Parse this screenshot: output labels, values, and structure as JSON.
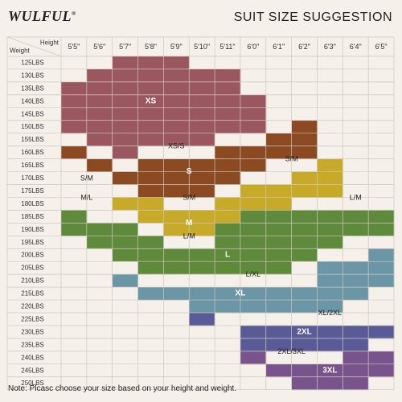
{
  "brand": "WULFUL",
  "brand_mark": "®",
  "title": "SUIT SIZE SUGGESTION",
  "footnote": "Note: Plcasc choose your size based on your height and weight.",
  "colors": {
    "XS": "#9b575f",
    "S": "#8b4a22",
    "M": "#c7aa27",
    "L": "#5f8a3c",
    "XL": "#6a96a6",
    "2XL": "#5a5b96",
    "3XL": "#79538c",
    "grid": "#cfc8bd",
    "bg": "#f5f1ea"
  },
  "chart_data": {
    "type": "table",
    "corner": {
      "top": "Height",
      "bottom": "Weight"
    },
    "heights": [
      "5'5\"",
      "5'6\"",
      "5'7\"",
      "5'8\"",
      "5'9\"",
      "5'10\"",
      "5'11\"",
      "6'0\"",
      "6'1\"",
      "6'2\"",
      "6'3\"",
      "6'4\"",
      "6'5\""
    ],
    "weights": [
      "125LBS",
      "130LBS",
      "135LBS",
      "140LBS",
      "145LBS",
      "150LBS",
      "155LBS",
      "160LBS",
      "165LBS",
      "170LBS",
      "175LBS",
      "180LBS",
      "185LBS",
      "190LBS",
      "195LBS",
      "200LBS",
      "205LBS",
      "210LBS",
      "215LBS",
      "220LBS",
      "225LBS",
      "230LBS",
      "235LBS",
      "240LBS",
      "245LBS",
      "250LBS"
    ],
    "grid": [
      [
        "",
        "",
        "XS",
        "XS",
        "XS",
        "",
        "",
        "",
        "",
        "",
        "",
        "",
        ""
      ],
      [
        "",
        "XS",
        "XS",
        "XS",
        "XS",
        "XS",
        "XS",
        "",
        "",
        "",
        "",
        "",
        ""
      ],
      [
        "XS",
        "XS",
        "XS",
        "XS",
        "XS",
        "XS",
        "XS",
        "",
        "",
        "",
        "",
        "",
        ""
      ],
      [
        "XS",
        "XS",
        "XS",
        "XS",
        "XS",
        "XS",
        "XS",
        "XS",
        "",
        "",
        "",
        "",
        ""
      ],
      [
        "XS",
        "XS",
        "XS",
        "XS",
        "XS",
        "XS",
        "XS",
        "XS",
        "",
        "",
        "",
        "",
        ""
      ],
      [
        "XS",
        "XS",
        "XS",
        "XS",
        "XS",
        "XS",
        "XS",
        "XS",
        "",
        "S",
        "",
        "",
        ""
      ],
      [
        "",
        "XS",
        "XS",
        "XS",
        "XS",
        "XS",
        "",
        "",
        "S",
        "S",
        "",
        "",
        ""
      ],
      [
        "S",
        "",
        "XS",
        "",
        "",
        "",
        "S",
        "S",
        "S",
        "S",
        "",
        "",
        ""
      ],
      [
        "",
        "S",
        "",
        "S",
        "S",
        "S",
        "S",
        "S",
        "",
        "",
        "M",
        "",
        ""
      ],
      [
        "",
        "",
        "S",
        "S",
        "S",
        "S",
        "S",
        "",
        "",
        "M",
        "M",
        "",
        ""
      ],
      [
        "",
        "",
        "",
        "S",
        "S",
        "S",
        "",
        "M",
        "M",
        "M",
        "M",
        "",
        ""
      ],
      [
        "",
        "",
        "M",
        "M",
        "",
        "",
        "M",
        "M",
        "M",
        "",
        "",
        "",
        ""
      ],
      [
        "L",
        "",
        "",
        "M",
        "M",
        "M",
        "M",
        "L",
        "L",
        "L",
        "L",
        "L",
        "L"
      ],
      [
        "L",
        "L",
        "L",
        "",
        "M",
        "M",
        "L",
        "L",
        "L",
        "L",
        "L",
        "L",
        "L"
      ],
      [
        "",
        "L",
        "L",
        "L",
        "",
        "",
        "L",
        "L",
        "L",
        "L",
        "L",
        "",
        ""
      ],
      [
        "",
        "",
        "L",
        "L",
        "L",
        "L",
        "L",
        "L",
        "L",
        "L",
        "",
        "",
        "XL"
      ],
      [
        "",
        "",
        "",
        "L",
        "L",
        "L",
        "L",
        "L",
        "L",
        "",
        "XL",
        "XL",
        "XL"
      ],
      [
        "",
        "",
        "XL",
        "",
        "",
        "",
        "",
        "",
        "",
        "",
        "XL",
        "XL",
        "XL"
      ],
      [
        "",
        "",
        "",
        "XL",
        "XL",
        "XL",
        "XL",
        "XL",
        "XL",
        "XL",
        "XL",
        "XL",
        ""
      ],
      [
        "",
        "",
        "",
        "",
        "",
        "XL",
        "XL",
        "XL",
        "XL",
        "XL",
        "XL",
        "",
        ""
      ],
      [
        "",
        "",
        "",
        "",
        "",
        "2XL",
        "",
        "",
        "",
        "",
        "",
        "",
        ""
      ],
      [
        "",
        "",
        "",
        "",
        "",
        "",
        "",
        "2XL",
        "2XL",
        "2XL",
        "2XL",
        "2XL",
        "2XL"
      ],
      [
        "",
        "",
        "",
        "",
        "",
        "",
        "",
        "2XL",
        "2XL",
        "2XL",
        "2XL",
        "2XL",
        ""
      ],
      [
        "",
        "",
        "",
        "",
        "",
        "",
        "",
        "3XL",
        "",
        "",
        "",
        "3XL",
        "3XL"
      ],
      [
        "",
        "",
        "",
        "",
        "",
        "",
        "",
        "",
        "3XL",
        "3XL",
        "3XL",
        "3XL",
        "3XL"
      ],
      [
        "",
        "",
        "",
        "",
        "",
        "",
        "",
        "",
        "",
        "3XL",
        "3XL",
        "3XL",
        ""
      ]
    ],
    "labels": [
      {
        "text": "XS",
        "row": 3.5,
        "col": 3.5
      },
      {
        "text": "XS/S",
        "row": 7,
        "col": 4.5
      },
      {
        "text": "S",
        "row": 9,
        "col": 5
      },
      {
        "text": "S/M",
        "row": 9.5,
        "col": 1
      },
      {
        "text": "S/M",
        "row": 8,
        "col": 9
      },
      {
        "text": "S/M",
        "row": 11,
        "col": 5
      },
      {
        "text": "M/L",
        "row": 11,
        "col": 1
      },
      {
        "text": "L/M",
        "row": 11,
        "col": 11.5
      },
      {
        "text": "M",
        "row": 13,
        "col": 5
      },
      {
        "text": "L/M",
        "row": 14,
        "col": 5
      },
      {
        "text": "L",
        "row": 15.5,
        "col": 6.5
      },
      {
        "text": "L/XL",
        "row": 17,
        "col": 7.5
      },
      {
        "text": "XL",
        "row": 18.5,
        "col": 7
      },
      {
        "text": "XL/2XL",
        "row": 20,
        "col": 10.5
      },
      {
        "text": "2XL",
        "row": 21.5,
        "col": 9.5
      },
      {
        "text": "2XL/3XL",
        "row": 23,
        "col": 9
      },
      {
        "text": "3XL",
        "row": 24.5,
        "col": 10.5
      }
    ]
  }
}
